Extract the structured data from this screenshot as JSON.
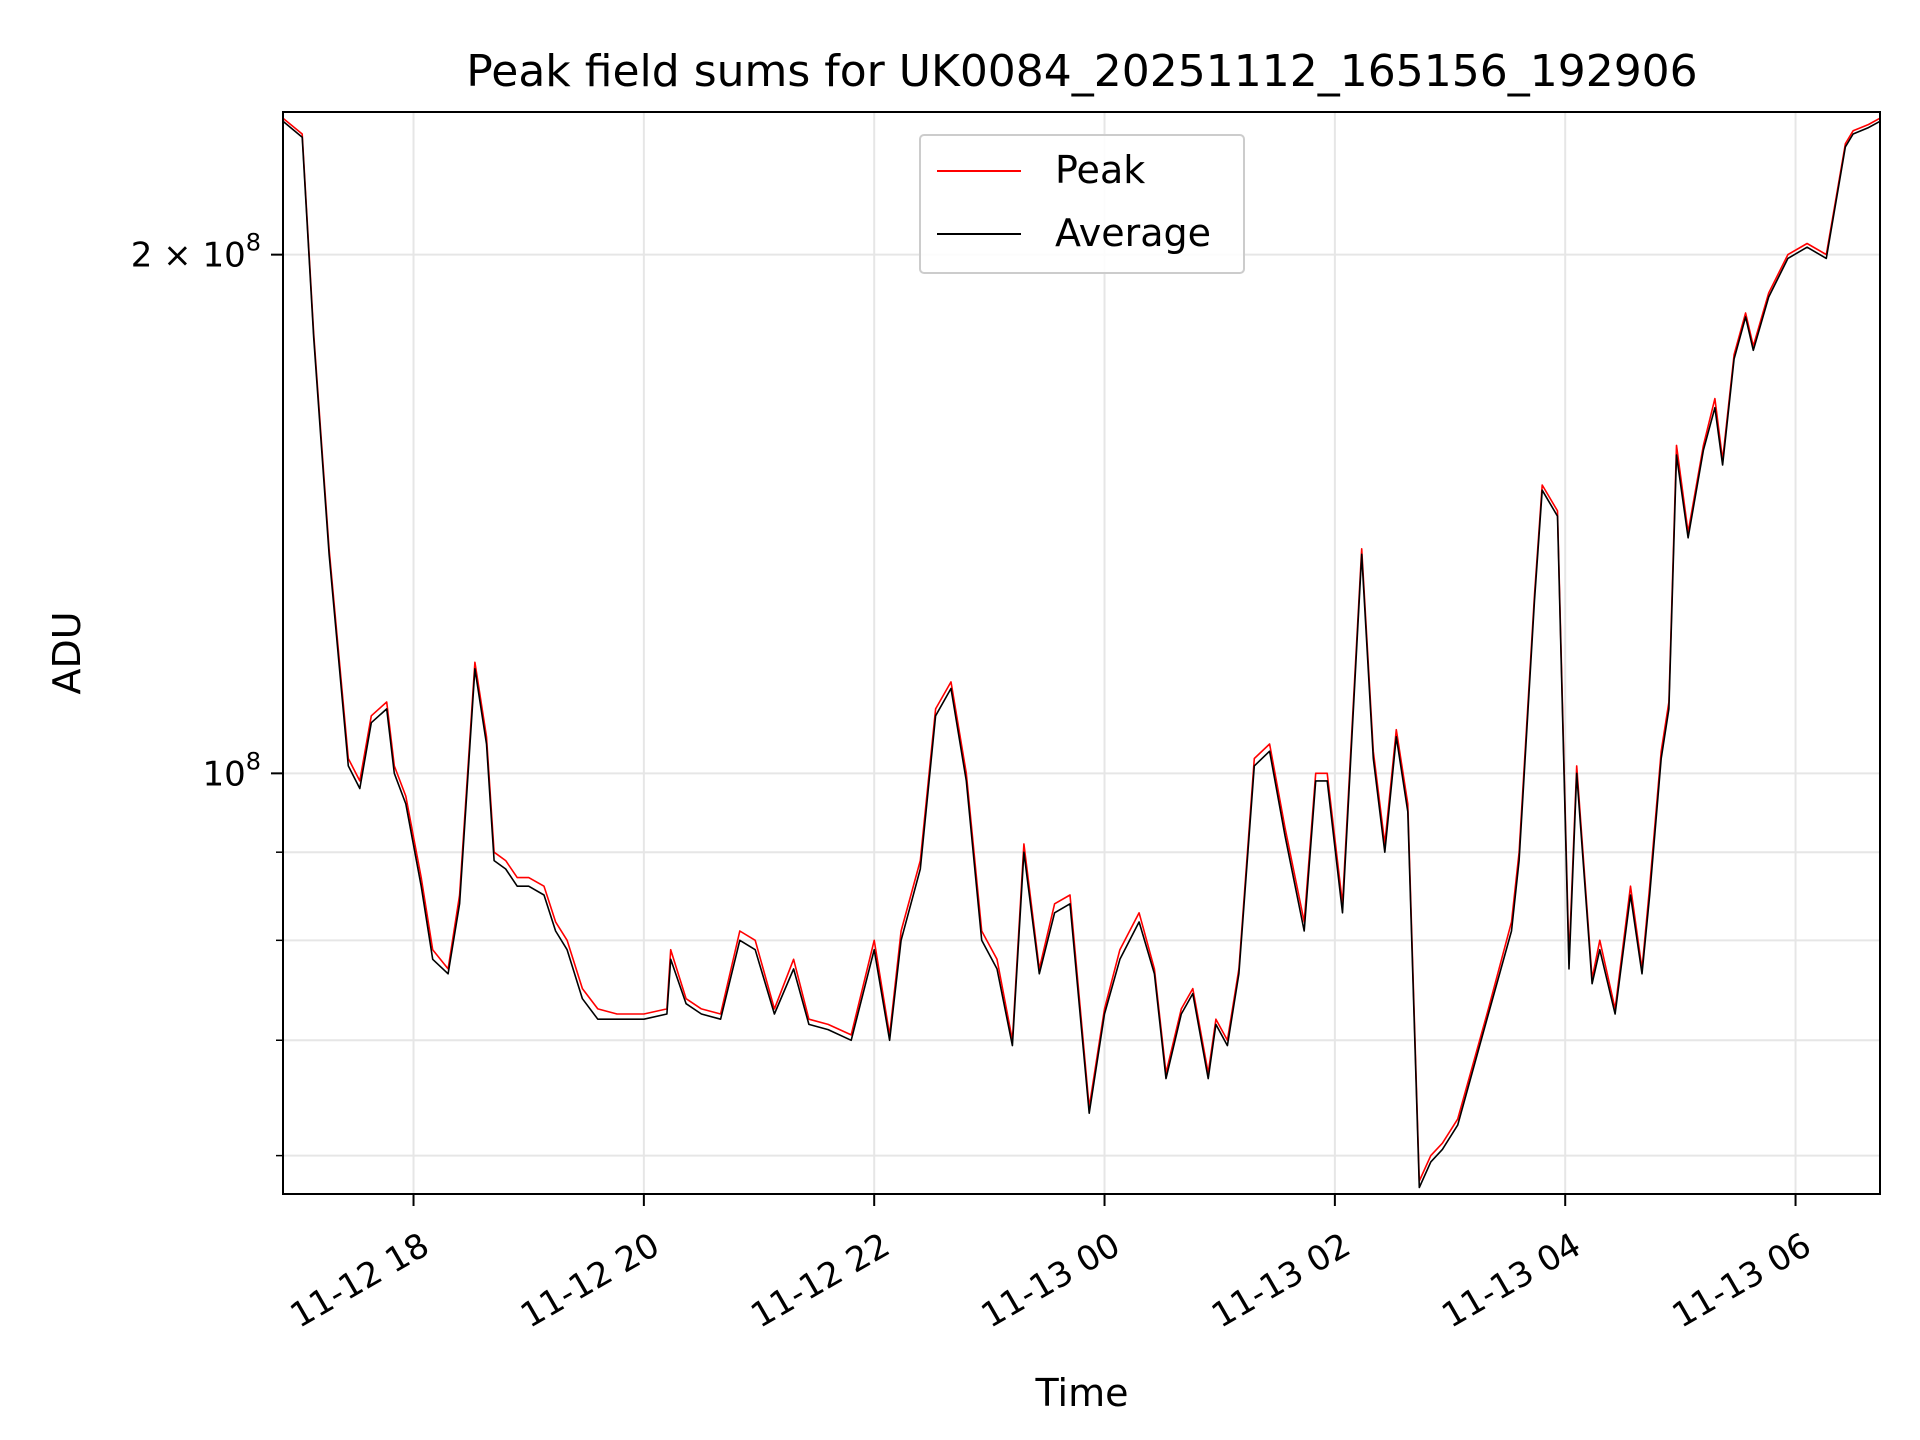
{
  "chart_data": {
    "type": "line",
    "title": "Peak field sums for UK0084_20251112_165156_192906",
    "xlabel": "Time",
    "ylabel": "ADU",
    "yscale": "log",
    "ylim": [
      57000000,
      242000000
    ],
    "xlim": [
      "2025-11-12 16:52",
      "2025-11-13 06:44"
    ],
    "x_ticks": [
      {
        "value": "2025-11-12 18:00",
        "label": "11-12 18"
      },
      {
        "value": "2025-11-12 20:00",
        "label": "11-12 20"
      },
      {
        "value": "2025-11-12 22:00",
        "label": "11-12 22"
      },
      {
        "value": "2025-11-13 00:00",
        "label": "11-13 00"
      },
      {
        "value": "2025-11-13 02:00",
        "label": "11-13 02"
      },
      {
        "value": "2025-11-13 04:00",
        "label": "11-13 04"
      },
      {
        "value": "2025-11-13 06:00",
        "label": "11-13 06"
      }
    ],
    "y_ticks": [
      {
        "value": 200000000,
        "base": "2 × 10",
        "exp": "8"
      },
      {
        "value": 100000000,
        "base": "10",
        "exp": "8"
      }
    ],
    "y_minor_ticks": [
      60000000,
      70000000,
      80000000,
      90000000
    ],
    "grid": true,
    "legend_position": "upper center",
    "series": [
      {
        "name": "Peak",
        "color": "#ff0000",
        "x": [
          "2025-11-12 16:52",
          "2025-11-12 17:02",
          "2025-11-12 17:08",
          "2025-11-12 17:16",
          "2025-11-12 17:26",
          "2025-11-12 17:32",
          "2025-11-12 17:38",
          "2025-11-12 17:46",
          "2025-11-12 17:50",
          "2025-11-12 17:56",
          "2025-11-12 18:04",
          "2025-11-12 18:10",
          "2025-11-12 18:18",
          "2025-11-12 18:24",
          "2025-11-12 18:32",
          "2025-11-12 18:38",
          "2025-11-12 18:42",
          "2025-11-12 18:48",
          "2025-11-12 18:54",
          "2025-11-12 19:00",
          "2025-11-12 19:08",
          "2025-11-12 19:14",
          "2025-11-12 19:20",
          "2025-11-12 19:28",
          "2025-11-12 19:36",
          "2025-11-12 19:46",
          "2025-11-12 20:00",
          "2025-11-12 20:12",
          "2025-11-12 20:14",
          "2025-11-12 20:22",
          "2025-11-12 20:30",
          "2025-11-12 20:40",
          "2025-11-12 20:50",
          "2025-11-12 20:58",
          "2025-11-12 21:08",
          "2025-11-12 21:18",
          "2025-11-12 21:26",
          "2025-11-12 21:36",
          "2025-11-12 21:48",
          "2025-11-12 22:00",
          "2025-11-12 22:08",
          "2025-11-12 22:14",
          "2025-11-12 22:24",
          "2025-11-12 22:32",
          "2025-11-12 22:40",
          "2025-11-12 22:48",
          "2025-11-12 22:56",
          "2025-11-12 23:04",
          "2025-11-12 23:12",
          "2025-11-12 23:18",
          "2025-11-12 23:26",
          "2025-11-12 23:34",
          "2025-11-12 23:42",
          "2025-11-12 23:52",
          "2025-11-13 00:00",
          "2025-11-13 00:08",
          "2025-11-13 00:18",
          "2025-11-13 00:26",
          "2025-11-13 00:32",
          "2025-11-13 00:40",
          "2025-11-13 00:46",
          "2025-11-13 00:54",
          "2025-11-13 00:58",
          "2025-11-13 01:04",
          "2025-11-13 01:10",
          "2025-11-13 01:18",
          "2025-11-13 01:26",
          "2025-11-13 01:34",
          "2025-11-13 01:44",
          "2025-11-13 01:50",
          "2025-11-13 01:56",
          "2025-11-13 02:04",
          "2025-11-13 02:14",
          "2025-11-13 02:20",
          "2025-11-13 02:26",
          "2025-11-13 02:32",
          "2025-11-13 02:38",
          "2025-11-13 02:44",
          "2025-11-13 02:50",
          "2025-11-13 02:56",
          "2025-11-13 03:04",
          "2025-11-13 03:20",
          "2025-11-13 03:32",
          "2025-11-13 03:36",
          "2025-11-13 03:44",
          "2025-11-13 03:48",
          "2025-11-13 03:56",
          "2025-11-13 04:02",
          "2025-11-13 04:06",
          "2025-11-13 04:14",
          "2025-11-13 04:18",
          "2025-11-13 04:26",
          "2025-11-13 04:34",
          "2025-11-13 04:40",
          "2025-11-13 04:44",
          "2025-11-13 04:50",
          "2025-11-13 04:54",
          "2025-11-13 04:58",
          "2025-11-13 05:04",
          "2025-11-13 05:12",
          "2025-11-13 05:18",
          "2025-11-13 05:22",
          "2025-11-13 05:28",
          "2025-11-13 05:34",
          "2025-11-13 05:38",
          "2025-11-13 05:46",
          "2025-11-13 05:56",
          "2025-11-13 06:06",
          "2025-11-13 06:16",
          "2025-11-13 06:26",
          "2025-11-13 06:30",
          "2025-11-13 06:38",
          "2025-11-13 06:44"
        ],
        "values": [
          240000000,
          235000000,
          180000000,
          135000000,
          102000000,
          99000000,
          108000000,
          110000000,
          101000000,
          97000000,
          87000000,
          79000000,
          77000000,
          85000000,
          116000000,
          105000000,
          90000000,
          89000000,
          87000000,
          87000000,
          86000000,
          82000000,
          80000000,
          75000000,
          73000000,
          72500000,
          72500000,
          73000000,
          79000000,
          74000000,
          73000000,
          72500000,
          81000000,
          80000000,
          73000000,
          78000000,
          72000000,
          71500000,
          70500000,
          80000000,
          70500000,
          81000000,
          89000000,
          109000000,
          113000000,
          100000000,
          81000000,
          78000000,
          70000000,
          91000000,
          77000000,
          84000000,
          85000000,
          64000000,
          73000000,
          79000000,
          83000000,
          77000000,
          67000000,
          73000000,
          75000000,
          67000000,
          72000000,
          70000000,
          77000000,
          102000000,
          104000000,
          93000000,
          82000000,
          100000000,
          100000000,
          84000000,
          135000000,
          103000000,
          91000000,
          106000000,
          96000000,
          58000000,
          60000000,
          61000000,
          63000000,
          73000000,
          82000000,
          90000000,
          127000000,
          147000000,
          142000000,
          78000000,
          101000000,
          76000000,
          80000000,
          73000000,
          86000000,
          77000000,
          86000000,
          103000000,
          110000000,
          155000000,
          138000000,
          155000000,
          165000000,
          152000000,
          175000000,
          185000000,
          177000000,
          190000000,
          200000000,
          203000000,
          200000000,
          232000000,
          236000000,
          238000000,
          240000000
        ]
      },
      {
        "name": "Average",
        "color": "#000000",
        "x": [
          "2025-11-12 16:52",
          "2025-11-12 17:02",
          "2025-11-12 17:08",
          "2025-11-12 17:16",
          "2025-11-12 17:26",
          "2025-11-12 17:32",
          "2025-11-12 17:38",
          "2025-11-12 17:46",
          "2025-11-12 17:50",
          "2025-11-12 17:56",
          "2025-11-12 18:04",
          "2025-11-12 18:10",
          "2025-11-12 18:18",
          "2025-11-12 18:24",
          "2025-11-12 18:32",
          "2025-11-12 18:38",
          "2025-11-12 18:42",
          "2025-11-12 18:48",
          "2025-11-12 18:54",
          "2025-11-12 19:00",
          "2025-11-12 19:08",
          "2025-11-12 19:14",
          "2025-11-12 19:20",
          "2025-11-12 19:28",
          "2025-11-12 19:36",
          "2025-11-12 19:46",
          "2025-11-12 20:00",
          "2025-11-12 20:12",
          "2025-11-12 20:14",
          "2025-11-12 20:22",
          "2025-11-12 20:30",
          "2025-11-12 20:40",
          "2025-11-12 20:50",
          "2025-11-12 20:58",
          "2025-11-12 21:08",
          "2025-11-12 21:18",
          "2025-11-12 21:26",
          "2025-11-12 21:36",
          "2025-11-12 21:48",
          "2025-11-12 22:00",
          "2025-11-12 22:08",
          "2025-11-12 22:14",
          "2025-11-12 22:24",
          "2025-11-12 22:32",
          "2025-11-12 22:40",
          "2025-11-12 22:48",
          "2025-11-12 22:56",
          "2025-11-12 23:04",
          "2025-11-12 23:12",
          "2025-11-12 23:18",
          "2025-11-12 23:26",
          "2025-11-12 23:34",
          "2025-11-12 23:42",
          "2025-11-12 23:52",
          "2025-11-13 00:00",
          "2025-11-13 00:08",
          "2025-11-13 00:18",
          "2025-11-13 00:26",
          "2025-11-13 00:32",
          "2025-11-13 00:40",
          "2025-11-13 00:46",
          "2025-11-13 00:54",
          "2025-11-13 00:58",
          "2025-11-13 01:04",
          "2025-11-13 01:10",
          "2025-11-13 01:18",
          "2025-11-13 01:26",
          "2025-11-13 01:34",
          "2025-11-13 01:44",
          "2025-11-13 01:50",
          "2025-11-13 01:56",
          "2025-11-13 02:04",
          "2025-11-13 02:14",
          "2025-11-13 02:20",
          "2025-11-13 02:26",
          "2025-11-13 02:32",
          "2025-11-13 02:38",
          "2025-11-13 02:44",
          "2025-11-13 02:50",
          "2025-11-13 02:56",
          "2025-11-13 03:04",
          "2025-11-13 03:20",
          "2025-11-13 03:32",
          "2025-11-13 03:36",
          "2025-11-13 03:44",
          "2025-11-13 03:48",
          "2025-11-13 03:56",
          "2025-11-13 04:02",
          "2025-11-13 04:06",
          "2025-11-13 04:14",
          "2025-11-13 04:18",
          "2025-11-13 04:26",
          "2025-11-13 04:34",
          "2025-11-13 04:40",
          "2025-11-13 04:44",
          "2025-11-13 04:50",
          "2025-11-13 04:54",
          "2025-11-13 04:58",
          "2025-11-13 05:04",
          "2025-11-13 05:12",
          "2025-11-13 05:18",
          "2025-11-13 05:22",
          "2025-11-13 05:28",
          "2025-11-13 05:34",
          "2025-11-13 05:38",
          "2025-11-13 05:46",
          "2025-11-13 05:56",
          "2025-11-13 06:06",
          "2025-11-13 06:16",
          "2025-11-13 06:26",
          "2025-11-13 06:30",
          "2025-11-13 06:38",
          "2025-11-13 06:44"
        ],
        "values": [
          239000000,
          234000000,
          179000000,
          134000000,
          101000000,
          98000000,
          107000000,
          109000000,
          100000000,
          96000000,
          86000000,
          78000000,
          76500000,
          84000000,
          115000000,
          104000000,
          89000000,
          88000000,
          86000000,
          86000000,
          85000000,
          81000000,
          79000000,
          74000000,
          72000000,
          72000000,
          72000000,
          72500000,
          78000000,
          73500000,
          72500000,
          72000000,
          80000000,
          79000000,
          72500000,
          77000000,
          71500000,
          71000000,
          70000000,
          79000000,
          70000000,
          80000000,
          88000000,
          108000000,
          112000000,
          99000000,
          80000000,
          77000000,
          69500000,
          90000000,
          76500000,
          83000000,
          84000000,
          63500000,
          72500000,
          78000000,
          82000000,
          76500000,
          66500000,
          72500000,
          74500000,
          66500000,
          71500000,
          69500000,
          76500000,
          101000000,
          103000000,
          92000000,
          81000000,
          99000000,
          99000000,
          83000000,
          134000000,
          102000000,
          90000000,
          105000000,
          95000000,
          57500000,
          59500000,
          60500000,
          62500000,
          72500000,
          81000000,
          89000000,
          126000000,
          146000000,
          141000000,
          77000000,
          100000000,
          75500000,
          79000000,
          72500000,
          85000000,
          76500000,
          85000000,
          102000000,
          109000000,
          153000000,
          137000000,
          154000000,
          163000000,
          151000000,
          174000000,
          184000000,
          176000000,
          189000000,
          199000000,
          202000000,
          199000000,
          231000000,
          235000000,
          237000000,
          239000000
        ]
      }
    ]
  }
}
